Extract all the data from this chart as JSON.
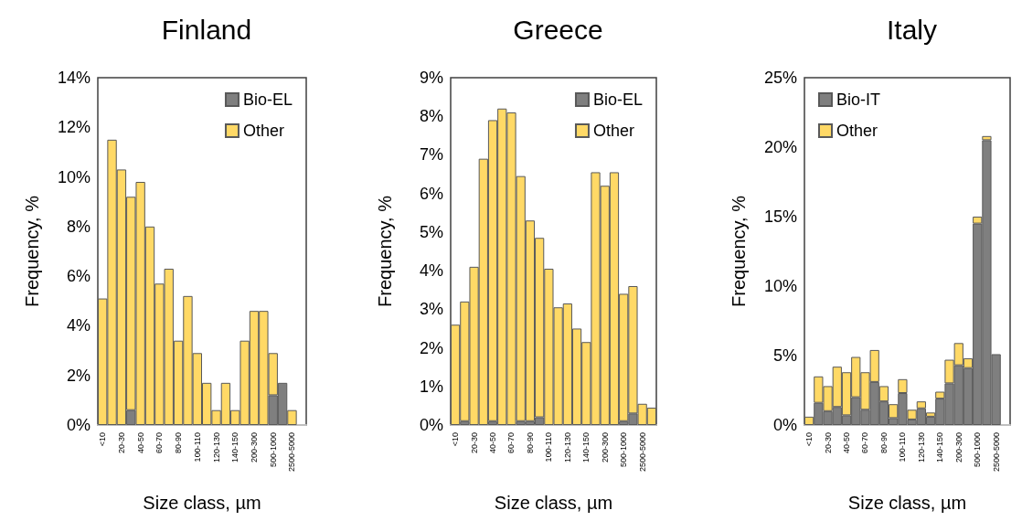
{
  "chart_data": [
    {
      "type": "bar",
      "title": "Finland",
      "xlabel": "Size class, µm",
      "ylabel": "Frequency, %",
      "stacked": true,
      "legend": "top right",
      "grid": false,
      "categories": [
        "<10",
        null,
        "20-30",
        null,
        "40-50",
        null,
        "60-70",
        null,
        "80-90",
        null,
        "100-110",
        null,
        "120-130",
        null,
        "140-150",
        null,
        "200-300",
        null,
        "500-1000",
        null,
        "2500-5000",
        null
      ],
      "ylim": [
        0,
        14
      ],
      "yticks": [
        {
          "value": 0,
          "label": "0%"
        },
        {
          "value": 2,
          "label": "2%"
        },
        {
          "value": 4,
          "label": "4%"
        },
        {
          "value": 6,
          "label": "6%"
        },
        {
          "value": 8,
          "label": "8%"
        },
        {
          "value": 10,
          "label": "10%"
        },
        {
          "value": 12,
          "label": "12%"
        },
        {
          "value": 14,
          "label": "14%"
        }
      ],
      "series": [
        {
          "name": "Bio-EL",
          "color": "#7f7f7f",
          "values": [
            null,
            null,
            null,
            0.6,
            null,
            null,
            null,
            null,
            null,
            null,
            null,
            null,
            null,
            null,
            null,
            null,
            null,
            null,
            1.2,
            1.7,
            null,
            null
          ]
        },
        {
          "name": "Other",
          "color": "#ffd966",
          "values": [
            5.1,
            11.5,
            10.3,
            8.6,
            9.8,
            8.0,
            5.7,
            6.3,
            3.4,
            5.2,
            2.9,
            1.7,
            0.6,
            1.7,
            0.6,
            3.4,
            4.6,
            4.6,
            1.7,
            null,
            0.6,
            null
          ]
        }
      ]
    },
    {
      "type": "bar",
      "title": "Greece",
      "xlabel": "Size class, µm",
      "ylabel": "Frequency, %",
      "stacked": true,
      "legend": "top right",
      "grid": false,
      "categories": [
        "<10",
        null,
        "20-30",
        null,
        "40-50",
        null,
        "60-70",
        null,
        "80-90",
        null,
        "100-110",
        null,
        "120-130",
        null,
        "140-150",
        null,
        "200-300",
        null,
        "500-1000",
        null,
        "2500-5000",
        null
      ],
      "ylim": [
        0,
        9
      ],
      "yticks": [
        {
          "value": 0,
          "label": "0%"
        },
        {
          "value": 1,
          "label": "1%"
        },
        {
          "value": 2,
          "label": "2%"
        },
        {
          "value": 3,
          "label": "3%"
        },
        {
          "value": 4,
          "label": "4%"
        },
        {
          "value": 5,
          "label": "5%"
        },
        {
          "value": 6,
          "label": "6%"
        },
        {
          "value": 7,
          "label": "7%"
        },
        {
          "value": 8,
          "label": "8%"
        },
        {
          "value": 9,
          "label": "9%"
        }
      ],
      "series": [
        {
          "name": "Bio-EL",
          "color": "#7f7f7f",
          "values": [
            null,
            0.1,
            null,
            null,
            0.1,
            null,
            null,
            0.1,
            0.1,
            0.2,
            null,
            null,
            null,
            null,
            null,
            null,
            null,
            null,
            0.1,
            0.3,
            null,
            null
          ]
        },
        {
          "name": "Other",
          "color": "#ffd966",
          "values": [
            2.6,
            3.1,
            4.1,
            6.9,
            7.8,
            8.2,
            8.1,
            6.35,
            5.2,
            4.65,
            4.05,
            3.05,
            3.15,
            2.5,
            2.15,
            6.55,
            6.2,
            6.55,
            3.3,
            3.3,
            0.55,
            0.45
          ]
        }
      ]
    },
    {
      "type": "bar",
      "title": "Italy",
      "xlabel": "Size class, µm",
      "ylabel": "Frequency, %",
      "stacked": true,
      "legend": "top left",
      "grid": false,
      "categories": [
        "<10",
        null,
        "20-30",
        null,
        "40-50",
        null,
        "60-70",
        null,
        "80-90",
        null,
        "100-110",
        null,
        "120-130",
        null,
        "140-150",
        null,
        "200-300",
        null,
        "500-1000",
        null,
        "2500-5000",
        null
      ],
      "ylim": [
        0,
        25
      ],
      "yticks": [
        {
          "value": 0,
          "label": "0%"
        },
        {
          "value": 5,
          "label": "5%"
        },
        {
          "value": 10,
          "label": "10%"
        },
        {
          "value": 15,
          "label": "15%"
        },
        {
          "value": 20,
          "label": "20%"
        },
        {
          "value": 25,
          "label": "25%"
        }
      ],
      "series": [
        {
          "name": "Bio-IT",
          "color": "#7f7f7f",
          "values": [
            null,
            1.6,
            1.0,
            1.3,
            0.7,
            2.0,
            1.1,
            3.1,
            1.7,
            0.5,
            2.3,
            0.4,
            1.2,
            0.6,
            1.9,
            3.0,
            4.3,
            4.1,
            14.5,
            20.5,
            5.1,
            null
          ]
        },
        {
          "name": "Other",
          "color": "#ffd966",
          "values": [
            0.6,
            1.9,
            1.8,
            2.9,
            3.1,
            2.9,
            2.7,
            2.3,
            1.1,
            1.0,
            1.0,
            0.7,
            0.5,
            0.3,
            0.5,
            1.7,
            1.6,
            0.7,
            0.5,
            0.3,
            null,
            null
          ]
        }
      ]
    }
  ]
}
